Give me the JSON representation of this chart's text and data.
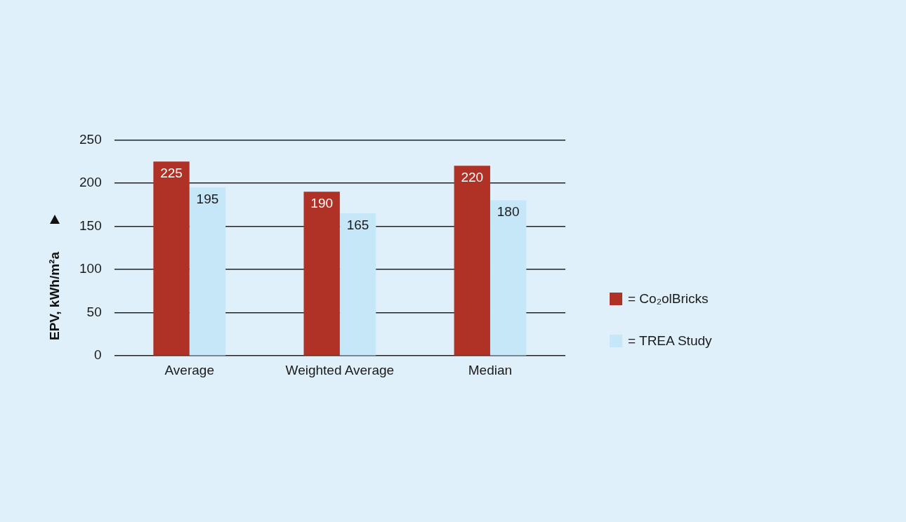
{
  "chart_data": {
    "type": "bar",
    "ylabel": "EPV, kWh/m²a",
    "categories": [
      "Average",
      "Weighted Average",
      "Median"
    ],
    "series": [
      {
        "name": "= Co₂olBricks",
        "color": "#b03226",
        "values": [
          225,
          190,
          220
        ]
      },
      {
        "name": "= TREA Study",
        "color": "#c6e7f7",
        "values": [
          195,
          165,
          180
        ]
      }
    ],
    "ylim": [
      0,
      250
    ],
    "yticks": [
      0,
      50,
      100,
      150,
      200,
      250
    ],
    "grid": "y",
    "legend": "right",
    "data_labels": true
  }
}
